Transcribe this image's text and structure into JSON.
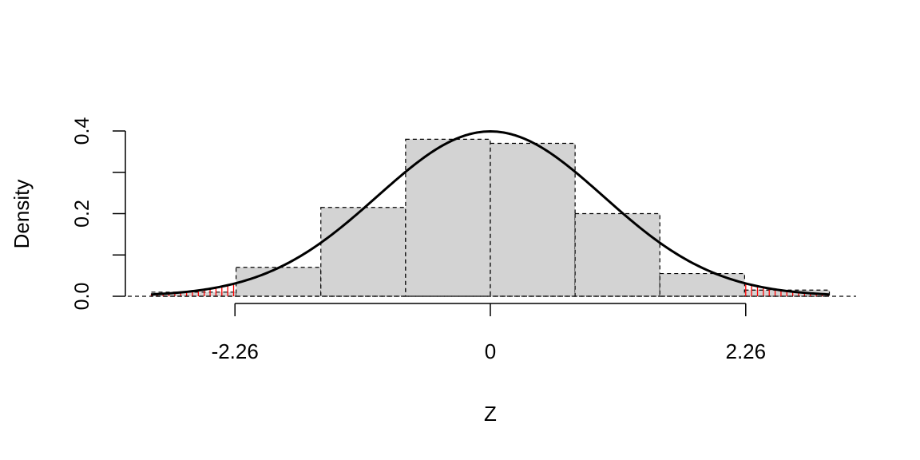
{
  "chart_data": {
    "type": "bar",
    "xlabel": "Z",
    "ylabel": "Density",
    "ylim": [
      0,
      0.4
    ],
    "y_ticks": [
      0.0,
      0.1,
      0.2,
      0.3,
      0.4
    ],
    "y_tick_labels": [
      "0.0",
      "0.2",
      "0.4"
    ],
    "y_labeled_ticks": [
      0.0,
      0.2,
      0.4
    ],
    "x_ticks": [
      -2.26,
      0,
      2.26
    ],
    "x_tick_labels": [
      "-2.26",
      "0",
      "2.26"
    ],
    "bins": [
      {
        "start": -3.0,
        "end": -2.25,
        "density": 0.01
      },
      {
        "start": -2.25,
        "end": -1.5,
        "density": 0.07
      },
      {
        "start": -1.5,
        "end": -0.75,
        "density": 0.215
      },
      {
        "start": -0.75,
        "end": 0.0,
        "density": 0.38
      },
      {
        "start": 0.0,
        "end": 0.75,
        "density": 0.37
      },
      {
        "start": 0.75,
        "end": 1.5,
        "density": 0.2
      },
      {
        "start": 1.5,
        "end": 2.25,
        "density": 0.055
      },
      {
        "start": 2.25,
        "end": 3.0,
        "density": 0.015
      }
    ],
    "curve": {
      "type": "normal-density",
      "mean": 0,
      "sd": 1,
      "x_range": [
        -3.0,
        3.0
      ]
    },
    "shaded_tails": {
      "lower": [
        -3.0,
        -2.26
      ],
      "upper": [
        2.26,
        3.0
      ],
      "color": "#ff0000"
    },
    "colors": {
      "bar_fill": "#d3d3d3",
      "bar_stroke": "#000000",
      "curve": "#000000",
      "tail": "#ff0000"
    }
  }
}
